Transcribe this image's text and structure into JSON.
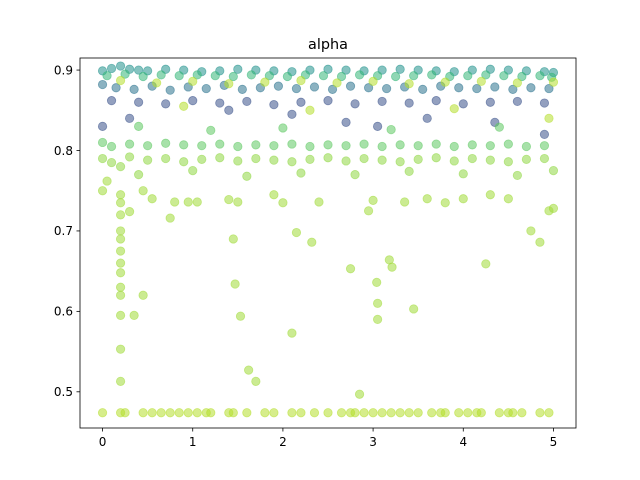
{
  "chart_data": {
    "type": "scatter",
    "title": "alpha",
    "xlabel": "",
    "ylabel": "",
    "xlim": [
      -0.25,
      5.25
    ],
    "ylim": [
      0.455,
      0.915
    ],
    "x_ticks": [
      0,
      1,
      2,
      3,
      4,
      5
    ],
    "x_tick_labels": [
      "0",
      "1",
      "2",
      "3",
      "4",
      "5"
    ],
    "y_ticks": [
      0.5,
      0.6,
      0.7,
      0.8,
      0.9
    ],
    "y_tick_labels": [
      "0.5",
      "0.6",
      "0.7",
      "0.8",
      "0.9"
    ],
    "grid": false,
    "legend": "none",
    "point_alpha": 0.55,
    "colormap": "viridis",
    "color_values": [
      "#3b528b",
      "#31688e",
      "#21918c",
      "#35b779",
      "#5ec962",
      "#90d743",
      "#b5de2b",
      "#a0da39",
      "#2c728e",
      "#1f9e89"
    ],
    "series": [
      {
        "color": "#21918c",
        "points": [
          [
            0.0,
            0.899
          ],
          [
            0.1,
            0.902
          ],
          [
            0.2,
            0.905
          ],
          [
            0.3,
            0.901
          ],
          [
            0.4,
            0.9
          ],
          [
            0.5,
            0.899
          ],
          [
            0.7,
            0.901
          ],
          [
            0.9,
            0.9
          ],
          [
            1.1,
            0.898
          ],
          [
            1.3,
            0.899
          ],
          [
            1.5,
            0.901
          ],
          [
            1.7,
            0.9
          ],
          [
            1.9,
            0.899
          ],
          [
            2.1,
            0.898
          ],
          [
            2.3,
            0.9
          ],
          [
            2.5,
            0.901
          ],
          [
            2.7,
            0.9
          ],
          [
            2.9,
            0.899
          ],
          [
            3.1,
            0.9
          ],
          [
            3.3,
            0.901
          ],
          [
            3.5,
            0.9
          ],
          [
            3.7,
            0.899
          ],
          [
            3.9,
            0.898
          ],
          [
            4.1,
            0.9
          ],
          [
            4.3,
            0.901
          ],
          [
            4.5,
            0.9
          ],
          [
            4.7,
            0.899
          ],
          [
            4.9,
            0.898
          ],
          [
            5.0,
            0.897
          ]
        ]
      },
      {
        "color": "#35b779",
        "points": [
          [
            0.05,
            0.893
          ],
          [
            0.25,
            0.895
          ],
          [
            0.45,
            0.892
          ],
          [
            0.65,
            0.894
          ],
          [
            0.85,
            0.893
          ],
          [
            1.05,
            0.894
          ],
          [
            1.25,
            0.893
          ],
          [
            1.45,
            0.892
          ],
          [
            1.65,
            0.894
          ],
          [
            1.85,
            0.893
          ],
          [
            2.05,
            0.892
          ],
          [
            2.25,
            0.894
          ],
          [
            2.45,
            0.893
          ],
          [
            2.65,
            0.892
          ],
          [
            2.85,
            0.894
          ],
          [
            3.05,
            0.893
          ],
          [
            3.25,
            0.892
          ],
          [
            3.45,
            0.893
          ],
          [
            3.65,
            0.894
          ],
          [
            3.85,
            0.892
          ],
          [
            4.05,
            0.893
          ],
          [
            4.25,
            0.894
          ],
          [
            4.45,
            0.893
          ],
          [
            4.65,
            0.892
          ],
          [
            4.85,
            0.893
          ],
          [
            4.98,
            0.891
          ]
        ]
      },
      {
        "color": "#2c728e",
        "points": [
          [
            0.0,
            0.882
          ],
          [
            0.15,
            0.878
          ],
          [
            0.35,
            0.876
          ],
          [
            0.55,
            0.88
          ],
          [
            0.75,
            0.875
          ],
          [
            0.95,
            0.879
          ],
          [
            1.15,
            0.877
          ],
          [
            1.35,
            0.881
          ],
          [
            1.55,
            0.876
          ],
          [
            1.75,
            0.878
          ],
          [
            1.95,
            0.88
          ],
          [
            2.15,
            0.877
          ],
          [
            2.35,
            0.879
          ],
          [
            2.55,
            0.876
          ],
          [
            2.75,
            0.88
          ],
          [
            2.95,
            0.878
          ],
          [
            3.15,
            0.877
          ],
          [
            3.35,
            0.879
          ],
          [
            3.55,
            0.876
          ],
          [
            3.75,
            0.88
          ],
          [
            3.95,
            0.878
          ],
          [
            4.15,
            0.877
          ],
          [
            4.35,
            0.879
          ],
          [
            4.55,
            0.876
          ],
          [
            4.75,
            0.878
          ],
          [
            4.95,
            0.877
          ]
        ]
      },
      {
        "color": "#3b528b",
        "points": [
          [
            0.1,
            0.862
          ],
          [
            0.4,
            0.86
          ],
          [
            0.7,
            0.858
          ],
          [
            1.0,
            0.862
          ],
          [
            1.3,
            0.859
          ],
          [
            1.6,
            0.861
          ],
          [
            1.9,
            0.857
          ],
          [
            2.2,
            0.86
          ],
          [
            2.5,
            0.862
          ],
          [
            2.8,
            0.858
          ],
          [
            3.1,
            0.861
          ],
          [
            3.4,
            0.859
          ],
          [
            3.7,
            0.862
          ],
          [
            4.0,
            0.858
          ],
          [
            4.3,
            0.86
          ],
          [
            4.6,
            0.861
          ],
          [
            4.9,
            0.859
          ],
          [
            0.0,
            0.83
          ],
          [
            0.3,
            0.84
          ],
          [
            1.4,
            0.85
          ],
          [
            2.1,
            0.845
          ],
          [
            2.7,
            0.835
          ],
          [
            3.05,
            0.83
          ],
          [
            3.6,
            0.84
          ],
          [
            4.35,
            0.835
          ],
          [
            4.9,
            0.82
          ]
        ]
      },
      {
        "color": "#b5de2b",
        "points": [
          [
            0.2,
            0.887
          ],
          [
            0.6,
            0.884
          ],
          [
            1.0,
            0.886
          ],
          [
            1.4,
            0.883
          ],
          [
            1.8,
            0.885
          ],
          [
            2.2,
            0.887
          ],
          [
            2.6,
            0.884
          ],
          [
            3.0,
            0.886
          ],
          [
            3.4,
            0.883
          ],
          [
            3.8,
            0.885
          ],
          [
            4.2,
            0.886
          ],
          [
            4.6,
            0.884
          ],
          [
            5.0,
            0.885
          ],
          [
            0.9,
            0.855
          ],
          [
            2.3,
            0.85
          ],
          [
            3.9,
            0.852
          ],
          [
            4.95,
            0.84
          ]
        ]
      },
      {
        "color": "#5ec962",
        "points": [
          [
            0.0,
            0.81
          ],
          [
            0.1,
            0.805
          ],
          [
            0.3,
            0.808
          ],
          [
            0.5,
            0.806
          ],
          [
            0.7,
            0.809
          ],
          [
            0.9,
            0.807
          ],
          [
            1.1,
            0.806
          ],
          [
            1.3,
            0.808
          ],
          [
            1.5,
            0.805
          ],
          [
            1.7,
            0.807
          ],
          [
            1.9,
            0.806
          ],
          [
            2.1,
            0.808
          ],
          [
            2.3,
            0.805
          ],
          [
            2.5,
            0.807
          ],
          [
            2.7,
            0.806
          ],
          [
            2.9,
            0.808
          ],
          [
            3.1,
            0.805
          ],
          [
            3.3,
            0.807
          ],
          [
            3.5,
            0.806
          ],
          [
            3.7,
            0.808
          ],
          [
            3.9,
            0.805
          ],
          [
            4.1,
            0.807
          ],
          [
            4.3,
            0.806
          ],
          [
            4.5,
            0.808
          ],
          [
            4.7,
            0.805
          ],
          [
            4.9,
            0.806
          ],
          [
            0.4,
            0.83
          ],
          [
            1.2,
            0.825
          ],
          [
            2.0,
            0.828
          ],
          [
            3.2,
            0.826
          ],
          [
            4.4,
            0.829
          ]
        ]
      },
      {
        "color": "#90d743",
        "points": [
          [
            0.0,
            0.79
          ],
          [
            0.1,
            0.785
          ],
          [
            0.2,
            0.78
          ],
          [
            0.3,
            0.792
          ],
          [
            0.5,
            0.788
          ],
          [
            0.7,
            0.79
          ],
          [
            0.9,
            0.786
          ],
          [
            1.1,
            0.789
          ],
          [
            1.3,
            0.791
          ],
          [
            1.5,
            0.787
          ],
          [
            1.7,
            0.79
          ],
          [
            1.9,
            0.788
          ],
          [
            2.1,
            0.786
          ],
          [
            2.3,
            0.789
          ],
          [
            2.5,
            0.791
          ],
          [
            2.7,
            0.787
          ],
          [
            2.9,
            0.79
          ],
          [
            3.1,
            0.788
          ],
          [
            3.3,
            0.786
          ],
          [
            3.5,
            0.789
          ],
          [
            3.7,
            0.791
          ],
          [
            3.9,
            0.787
          ],
          [
            4.1,
            0.79
          ],
          [
            4.3,
            0.788
          ],
          [
            4.5,
            0.786
          ],
          [
            4.7,
            0.789
          ],
          [
            4.9,
            0.79
          ],
          [
            0.4,
            0.77
          ],
          [
            1.0,
            0.775
          ],
          [
            1.6,
            0.768
          ],
          [
            2.2,
            0.772
          ],
          [
            2.8,
            0.77
          ],
          [
            3.4,
            0.774
          ],
          [
            4.0,
            0.771
          ],
          [
            4.6,
            0.769
          ],
          [
            5.0,
            0.775
          ]
        ]
      },
      {
        "color": "#a0da39",
        "points": [
          [
            0.0,
            0.75
          ],
          [
            0.05,
            0.762
          ],
          [
            0.2,
            0.745
          ],
          [
            0.2,
            0.735
          ],
          [
            0.2,
            0.72
          ],
          [
            0.2,
            0.7
          ],
          [
            0.2,
            0.69
          ],
          [
            0.2,
            0.675
          ],
          [
            0.2,
            0.66
          ],
          [
            0.2,
            0.648
          ],
          [
            0.2,
            0.63
          ],
          [
            0.2,
            0.62
          ],
          [
            0.2,
            0.595
          ],
          [
            0.2,
            0.553
          ],
          [
            0.2,
            0.513
          ],
          [
            0.35,
            0.595
          ],
          [
            0.45,
            0.62
          ],
          [
            0.3,
            0.724
          ],
          [
            0.45,
            0.75
          ],
          [
            0.55,
            0.74
          ],
          [
            0.75,
            0.716
          ],
          [
            0.8,
            0.736
          ],
          [
            0.95,
            0.736
          ],
          [
            1.05,
            0.736
          ],
          [
            1.4,
            0.739
          ],
          [
            1.45,
            0.69
          ],
          [
            1.47,
            0.634
          ],
          [
            1.5,
            0.736
          ],
          [
            1.53,
            0.594
          ],
          [
            1.62,
            0.527
          ],
          [
            1.7,
            0.513
          ],
          [
            1.9,
            0.745
          ],
          [
            2.0,
            0.735
          ],
          [
            2.1,
            0.573
          ],
          [
            2.15,
            0.698
          ],
          [
            2.32,
            0.686
          ],
          [
            2.4,
            0.736
          ],
          [
            2.75,
            0.653
          ],
          [
            2.85,
            0.497
          ],
          [
            2.95,
            0.725
          ],
          [
            3.0,
            0.738
          ],
          [
            3.04,
            0.636
          ],
          [
            3.05,
            0.61
          ],
          [
            3.05,
            0.59
          ],
          [
            3.18,
            0.664
          ],
          [
            3.21,
            0.655
          ],
          [
            3.35,
            0.736
          ],
          [
            3.45,
            0.603
          ],
          [
            3.6,
            0.74
          ],
          [
            3.8,
            0.735
          ],
          [
            4.0,
            0.74
          ],
          [
            4.25,
            0.659
          ],
          [
            4.3,
            0.745
          ],
          [
            4.5,
            0.74
          ],
          [
            4.75,
            0.7
          ],
          [
            4.85,
            0.686
          ],
          [
            4.95,
            0.725
          ],
          [
            5.0,
            0.728
          ]
        ]
      },
      {
        "color": "#b5de2b",
        "points": [
          [
            0.0,
            0.474
          ],
          [
            0.2,
            0.474
          ],
          [
            0.25,
            0.474
          ],
          [
            0.45,
            0.474
          ],
          [
            0.55,
            0.474
          ],
          [
            0.65,
            0.474
          ],
          [
            0.75,
            0.474
          ],
          [
            0.85,
            0.474
          ],
          [
            0.95,
            0.474
          ],
          [
            1.05,
            0.474
          ],
          [
            1.15,
            0.474
          ],
          [
            1.2,
            0.474
          ],
          [
            1.4,
            0.474
          ],
          [
            1.45,
            0.474
          ],
          [
            1.6,
            0.474
          ],
          [
            1.8,
            0.474
          ],
          [
            1.9,
            0.474
          ],
          [
            2.1,
            0.474
          ],
          [
            2.2,
            0.474
          ],
          [
            2.35,
            0.474
          ],
          [
            2.5,
            0.474
          ],
          [
            2.65,
            0.474
          ],
          [
            2.75,
            0.474
          ],
          [
            2.8,
            0.474
          ],
          [
            2.9,
            0.474
          ],
          [
            3.0,
            0.474
          ],
          [
            3.1,
            0.474
          ],
          [
            3.2,
            0.474
          ],
          [
            3.3,
            0.474
          ],
          [
            3.4,
            0.474
          ],
          [
            3.5,
            0.474
          ],
          [
            3.65,
            0.474
          ],
          [
            3.75,
            0.474
          ],
          [
            3.8,
            0.474
          ],
          [
            3.95,
            0.474
          ],
          [
            4.05,
            0.474
          ],
          [
            4.15,
            0.474
          ],
          [
            4.2,
            0.474
          ],
          [
            4.4,
            0.474
          ],
          [
            4.5,
            0.474
          ],
          [
            4.55,
            0.474
          ],
          [
            4.65,
            0.474
          ],
          [
            4.85,
            0.474
          ],
          [
            4.95,
            0.474
          ]
        ]
      }
    ]
  }
}
